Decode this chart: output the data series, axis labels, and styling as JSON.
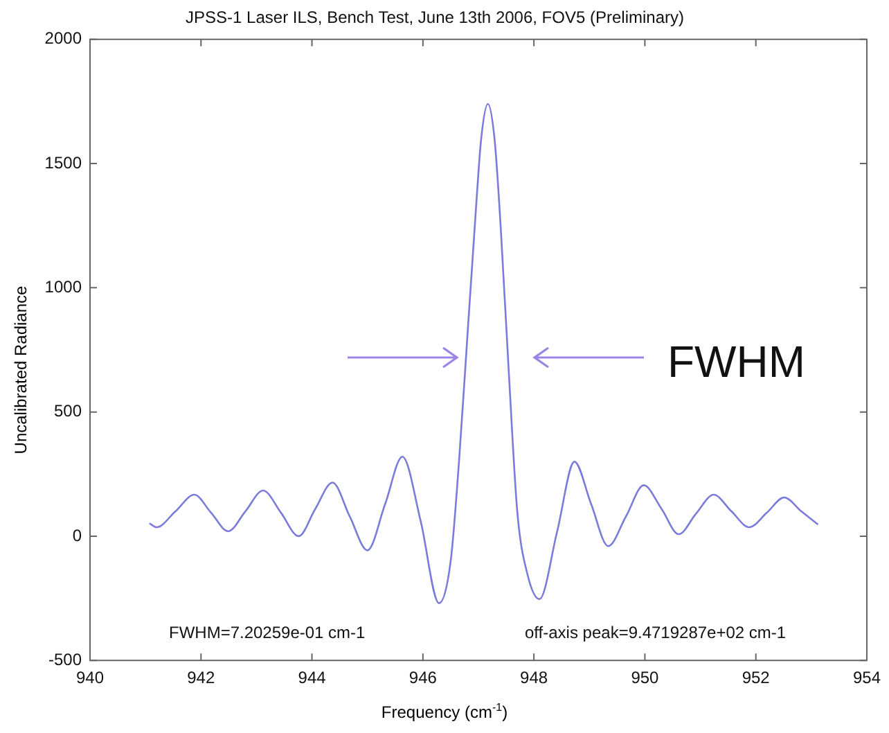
{
  "chart_data": {
    "type": "line",
    "title": "JPSS-1 Laser ILS, Bench Test, June 13th 2006, FOV5 (Preliminary)",
    "xlabel": "Frequency (cm$^{-1}$)",
    "ylabel": "Uncalibrated Radiance",
    "annotations": [
      "FWHM=7.20259e-01 cm-1",
      "off-axis peak=9.4719287e+02 cm-1",
      "FWHM"
    ],
    "series": [
      {
        "color": "#7b7bdc",
        "x": [
          941.07,
          941.2,
          941.54,
          941.88,
          942.18,
          942.49,
          942.8,
          943.12,
          943.44,
          943.76,
          944.06,
          944.37,
          944.68,
          945.0,
          945.32,
          945.63,
          945.96,
          946.29,
          946.5,
          946.65,
          946.8,
          946.95,
          947.05,
          947.17,
          947.29,
          947.4,
          947.55,
          947.7,
          947.88,
          948.1,
          948.42,
          948.73,
          949.03,
          949.34,
          949.66,
          949.98,
          950.3,
          950.61,
          950.92,
          951.24,
          951.56,
          951.88,
          952.2,
          952.51,
          952.82,
          953.12
        ],
        "values": [
          52,
          36,
          100,
          167,
          95,
          20,
          100,
          184,
          95,
          0,
          110,
          216,
          80,
          -57,
          130,
          320,
          60,
          -270,
          -100,
          300,
          800,
          1300,
          1600,
          1740,
          1600,
          1250,
          650,
          100,
          -150,
          -253,
          20,
          300,
          130,
          -40,
          80,
          205,
          110,
          8,
          90,
          167,
          100,
          36,
          95,
          156,
          100,
          47
        ]
      }
    ],
    "xlim": [
      940,
      954
    ],
    "xticks": [
      940,
      942,
      944,
      946,
      948,
      950,
      952,
      954
    ],
    "ylim": [
      -500,
      2000
    ],
    "yticks": [
      -500,
      0,
      500,
      1000,
      1500,
      2000
    ],
    "grid": false,
    "legend": false,
    "marker": "none",
    "line_style": "solid"
  }
}
